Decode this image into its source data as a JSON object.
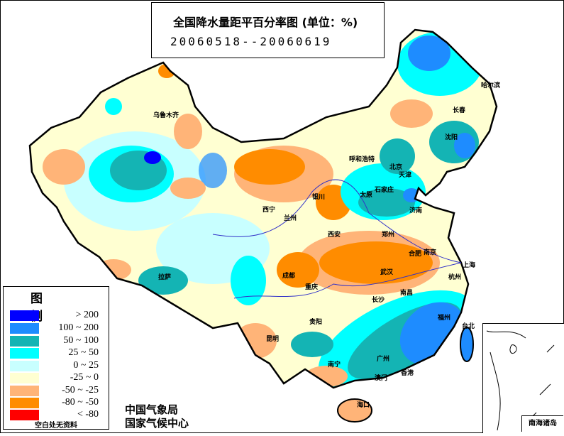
{
  "title": "全国降水量距平百分率图 (单位：%)",
  "period": "20060518--20060619",
  "legend": {
    "title": "图 例",
    "items": [
      {
        "label": "> 200",
        "color": "#0000ff"
      },
      {
        "label": "100 ~ 200",
        "color": "#1e8cff"
      },
      {
        "label": "50 ~ 100",
        "color": "#14b4b4"
      },
      {
        "label": "25 ~ 50",
        "color": "#00ffff"
      },
      {
        "label": "0 ~ 25",
        "color": "#c8ffff"
      },
      {
        "label": "-25 ~ 0",
        "color": "#ffffd2"
      },
      {
        "label": "-50 ~ -25",
        "color": "#ffb478"
      },
      {
        "label": "-80 ~ -50",
        "color": "#ff8c00"
      },
      {
        "label": "< -80",
        "color": "#ff0000"
      }
    ],
    "note": "空白处无资料"
  },
  "org": [
    "中国气象局",
    "国家气候中心"
  ],
  "inset_label": "南海诸岛",
  "cities": [
    "乌鲁木齐",
    "哈尔滨",
    "长春",
    "沈阳",
    "呼和浩特",
    "北京",
    "天津",
    "石家庄",
    "太原",
    "济南",
    "银川",
    "西宁",
    "兰州",
    "西安",
    "郑州",
    "合肥",
    "南京",
    "上海",
    "杭州",
    "武汉",
    "成都",
    "重庆",
    "长沙",
    "南昌",
    "福州",
    "台北",
    "贵阳",
    "昆明",
    "南宁",
    "广州",
    "香港",
    "澳门",
    "海口",
    "拉萨"
  ]
}
